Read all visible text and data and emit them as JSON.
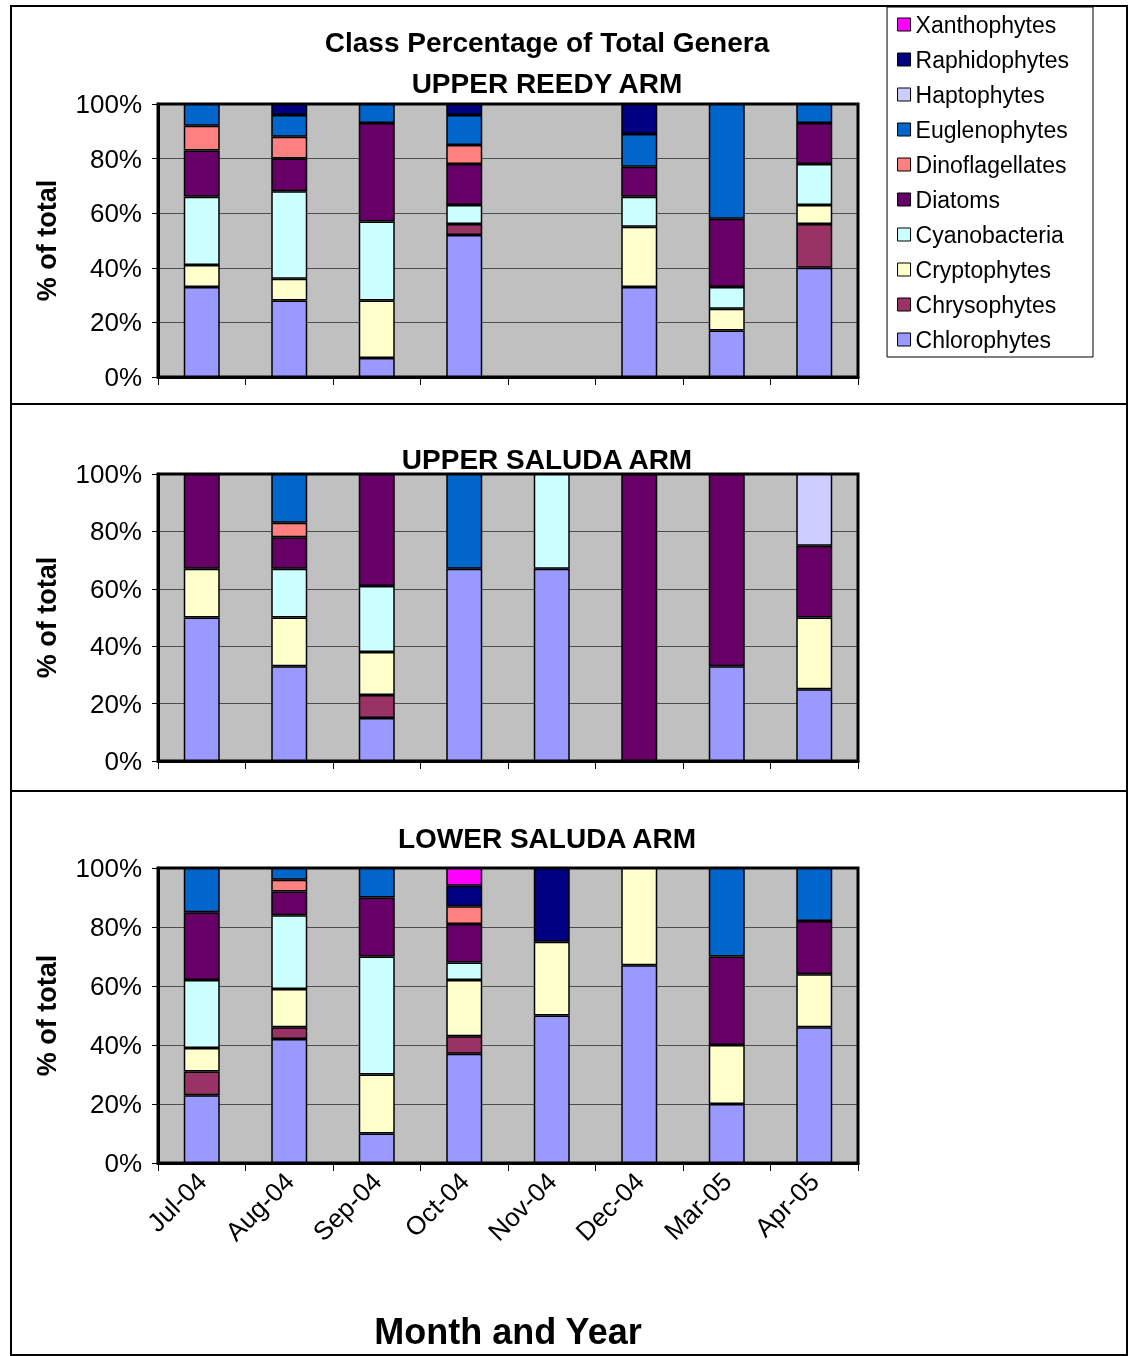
{
  "chart_data": [
    {
      "type": "bar",
      "title": "Class Percentage of Total Genera",
      "subtitle": "UPPER REEDY ARM",
      "ylabel": "% of total",
      "stacked": true,
      "legend": "right",
      "grid": "y",
      "tick_labels": "y",
      "categories": [
        null,
        null,
        null,
        null,
        null,
        null,
        null,
        null
      ],
      "ylim": [
        0,
        100
      ],
      "yticks": [
        {
          "value": 0,
          "label": "0%"
        },
        {
          "value": 20,
          "label": "20%"
        },
        {
          "value": 40,
          "label": "40%"
        },
        {
          "value": 60,
          "label": "60%"
        },
        {
          "value": 80,
          "label": "80%"
        },
        {
          "value": 100,
          "label": "100%"
        }
      ],
      "series": [
        {
          "name": "Chlorophytes",
          "color": "#9999ff",
          "values": [
            33,
            28,
            7,
            52,
            null,
            33,
            17,
            40
          ]
        },
        {
          "name": "Chrysophytes",
          "color": "#993366",
          "values": [
            null,
            null,
            null,
            4,
            null,
            null,
            null,
            16
          ]
        },
        {
          "name": "Cryptophytes",
          "color": "#ffffcc",
          "values": [
            8,
            8,
            21,
            null,
            null,
            22,
            8,
            7
          ]
        },
        {
          "name": "Cyanobacteria",
          "color": "#ccffff",
          "values": [
            25,
            32,
            29,
            7,
            null,
            11,
            8,
            15
          ]
        },
        {
          "name": "Diatoms",
          "color": "#660066",
          "values": [
            17,
            12,
            36,
            15,
            null,
            11,
            25,
            15
          ]
        },
        {
          "name": "Dinoflagellates",
          "color": "#ff8080",
          "values": [
            9,
            8,
            null,
            7,
            null,
            null,
            null,
            null
          ]
        },
        {
          "name": "Euglenophytes",
          "color": "#0066cc",
          "values": [
            8,
            8,
            7,
            11,
            null,
            12,
            42,
            7
          ]
        },
        {
          "name": "Haptophytes",
          "color": "#ccccff",
          "values": [
            null,
            null,
            null,
            null,
            null,
            null,
            null,
            null
          ]
        },
        {
          "name": "Raphidophytes",
          "color": "#000080",
          "values": [
            null,
            4,
            null,
            4,
            null,
            11,
            null,
            null
          ]
        },
        {
          "name": "Xanthophytes",
          "color": "#ff00ff",
          "values": [
            null,
            null,
            null,
            null,
            null,
            null,
            null,
            null
          ]
        }
      ]
    },
    {
      "type": "bar",
      "title": "UPPER SALUDA ARM",
      "ylabel": "% of total",
      "stacked": true,
      "grid": "y",
      "tick_labels": "y",
      "categories": [
        null,
        null,
        null,
        null,
        null,
        null,
        null,
        null
      ],
      "ylim": [
        0,
        100
      ],
      "yticks": [
        {
          "value": 0,
          "label": "0%"
        },
        {
          "value": 20,
          "label": "20%"
        },
        {
          "value": 40,
          "label": "40%"
        },
        {
          "value": 60,
          "label": "60%"
        },
        {
          "value": 80,
          "label": "80%"
        },
        {
          "value": 100,
          "label": "100%"
        }
      ],
      "series": [
        {
          "color": "#9999ff",
          "values": [
            50,
            33,
            15,
            67,
            67,
            null,
            33,
            25
          ]
        },
        {
          "color": "#993366",
          "values": [
            null,
            null,
            8,
            null,
            null,
            null,
            null,
            null
          ]
        },
        {
          "color": "#ffffcc",
          "values": [
            17,
            17,
            15,
            null,
            null,
            null,
            null,
            25
          ]
        },
        {
          "color": "#ccffff",
          "values": [
            null,
            17,
            23,
            null,
            33,
            null,
            null,
            null
          ]
        },
        {
          "color": "#660066",
          "values": [
            33,
            11,
            39,
            null,
            null,
            100,
            67,
            25
          ]
        },
        {
          "color": "#ff8080",
          "values": [
            null,
            5,
            null,
            null,
            null,
            null,
            null,
            null
          ]
        },
        {
          "color": "#0066cc",
          "values": [
            null,
            17,
            null,
            33,
            null,
            null,
            null,
            null
          ]
        },
        {
          "color": "#ccccff",
          "values": [
            null,
            null,
            null,
            null,
            null,
            null,
            null,
            25
          ]
        }
      ]
    },
    {
      "type": "bar",
      "title": "LOWER SALUDA ARM",
      "ylabel": "% of total",
      "xlabel": "Month and Year",
      "stacked": true,
      "grid": "y",
      "categories": [
        "Jul-04",
        "Aug-04",
        "Sep-04",
        "Oct-04",
        "Nov-04",
        "Dec-04",
        "Mar-05",
        "Apr-05"
      ],
      "ylim": [
        0,
        100
      ],
      "yticks": [
        {
          "value": 0,
          "label": "0%"
        },
        {
          "value": 20,
          "label": "20%"
        },
        {
          "value": 40,
          "label": "40%"
        },
        {
          "value": 60,
          "label": "60%"
        },
        {
          "value": 80,
          "label": "80%"
        },
        {
          "value": 100,
          "label": "100%"
        }
      ],
      "series": [
        {
          "color": "#9999ff",
          "values": [
            23,
            42,
            10,
            37,
            50,
            67,
            20,
            46
          ]
        },
        {
          "color": "#993366",
          "values": [
            8,
            4,
            null,
            6,
            null,
            null,
            null,
            null
          ]
        },
        {
          "color": "#ffffcc",
          "values": [
            8,
            13,
            20,
            19,
            25,
            33,
            20,
            18
          ]
        },
        {
          "color": "#ccffff",
          "values": [
            23,
            25,
            40,
            6,
            null,
            null,
            null,
            null
          ]
        },
        {
          "color": "#660066",
          "values": [
            23,
            8,
            20,
            13,
            null,
            null,
            30,
            18
          ]
        },
        {
          "color": "#ff8080",
          "values": [
            null,
            4,
            null,
            6,
            null,
            null,
            null,
            null
          ]
        },
        {
          "color": "#0066cc",
          "values": [
            15,
            4,
            10,
            null,
            null,
            null,
            30,
            18
          ]
        },
        {
          "color": "#000080",
          "values": [
            null,
            null,
            null,
            7,
            25,
            null,
            null,
            null
          ]
        },
        {
          "color": "#ff00ff",
          "values": [
            null,
            null,
            null,
            6,
            null,
            null,
            null,
            null
          ]
        }
      ]
    }
  ]
}
